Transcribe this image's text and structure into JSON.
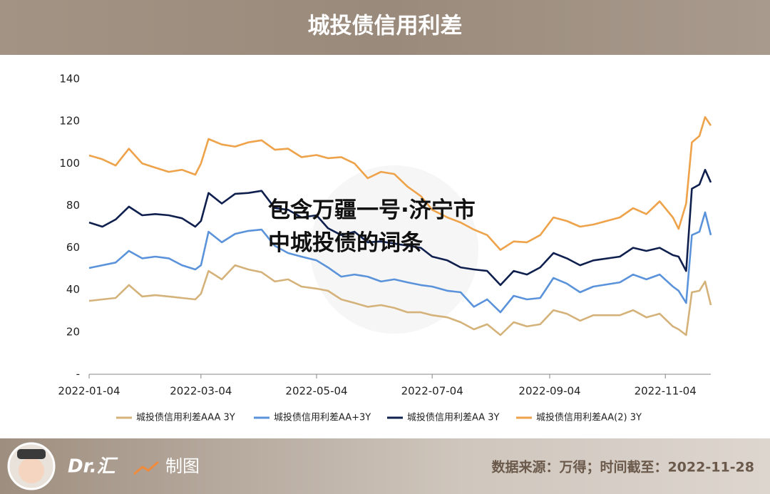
{
  "chart_data": {
    "type": "line",
    "title": "城投债信用利差",
    "x": [
      "2022-01-04",
      "2022-01-11",
      "2022-01-18",
      "2022-01-25",
      "2022-02-01",
      "2022-02-08",
      "2022-02-15",
      "2022-02-22",
      "2022-03-01",
      "2022-03-04",
      "2022-03-08",
      "2022-03-15",
      "2022-03-22",
      "2022-03-29",
      "2022-04-05",
      "2022-04-12",
      "2022-04-19",
      "2022-04-26",
      "2022-05-04",
      "2022-05-10",
      "2022-05-17",
      "2022-05-24",
      "2022-05-31",
      "2022-06-07",
      "2022-06-14",
      "2022-06-21",
      "2022-06-28",
      "2022-07-04",
      "2022-07-12",
      "2022-07-19",
      "2022-07-26",
      "2022-08-02",
      "2022-08-09",
      "2022-08-16",
      "2022-08-23",
      "2022-08-30",
      "2022-09-06",
      "2022-09-13",
      "2022-09-20",
      "2022-09-27",
      "2022-10-11",
      "2022-10-18",
      "2022-10-25",
      "2022-11-01",
      "2022-11-08",
      "2022-11-11",
      "2022-11-15",
      "2022-11-18",
      "2022-11-22",
      "2022-11-25",
      "2022-11-28"
    ],
    "series": [
      {
        "name": "城投债信用利差AAA 3Y",
        "color": "#d4b27a",
        "values": [
          34.8,
          35.5,
          36.2,
          42.3,
          36.9,
          37.5,
          36.9,
          36.2,
          35.5,
          38.2,
          49,
          45,
          51.7,
          49.7,
          48.4,
          44,
          45,
          41.6,
          40.6,
          39.6,
          35.5,
          33.8,
          32,
          32.8,
          31.5,
          29.4,
          29.4,
          28,
          27,
          24.7,
          21.3,
          23.7,
          18.6,
          24.7,
          22.7,
          23.7,
          30.4,
          28.7,
          25.4,
          28,
          28,
          30.4,
          27,
          28.7,
          22.7,
          21.3,
          18.6,
          38.9,
          39.6,
          44,
          32.8
        ]
      },
      {
        "name": "城投债信用利差AA+3Y",
        "color": "#5b93db",
        "values": [
          50.4,
          51.7,
          53,
          58.5,
          55,
          55.8,
          55,
          51.7,
          49.7,
          51.7,
          67.6,
          62.6,
          66.6,
          68,
          68.6,
          60.9,
          57.5,
          55.8,
          54,
          50.7,
          46.3,
          47.3,
          46.3,
          44,
          45,
          43.6,
          42.3,
          41.6,
          39.6,
          38.9,
          32,
          35.5,
          29.4,
          37.2,
          35.5,
          36.2,
          45.7,
          43,
          38.9,
          41.6,
          43.6,
          47.3,
          45,
          47.3,
          41.6,
          39.6,
          33.8,
          66,
          67.6,
          76.8,
          66
        ]
      },
      {
        "name": "城投债信用利差AA 3Y",
        "color": "#0f1f4e",
        "values": [
          72,
          70,
          73.4,
          79.5,
          75.4,
          76,
          75.4,
          74,
          70,
          72.7,
          86,
          81,
          85.6,
          86,
          87,
          78.8,
          78,
          74.4,
          75.4,
          69.3,
          66,
          67.6,
          62.6,
          63,
          62,
          61,
          60,
          55.8,
          54,
          50.7,
          49.7,
          49,
          42.3,
          49,
          47.3,
          50.7,
          57.5,
          55,
          51.7,
          54,
          55.8,
          60,
          58.5,
          60,
          56.5,
          55.8,
          49,
          88,
          90,
          97,
          91
        ]
      },
      {
        "name": "城投债信用利差AA(2) 3Y",
        "color": "#eea24a",
        "values": [
          103.8,
          102,
          99,
          107,
          100,
          98,
          96,
          97,
          94.7,
          100,
          111.6,
          109,
          108,
          110,
          111,
          106.5,
          107,
          103,
          104,
          102.5,
          103,
          100,
          93,
          96,
          95,
          89,
          84.5,
          78,
          74.4,
          72,
          68.6,
          66,
          59,
          63,
          62.6,
          66,
          74.4,
          72.7,
          70,
          71,
          74.4,
          78.8,
          76,
          82,
          74.4,
          69,
          81,
          110,
          113,
          122,
          118
        ]
      }
    ],
    "xlim": [
      "2022-01-04",
      "2022-11-28"
    ],
    "xticks": [
      "2022-01-04",
      "2022-03-04",
      "2022-05-04",
      "2022-07-04",
      "2022-09-04",
      "2022-11-04"
    ],
    "ylim": [
      0,
      140
    ],
    "yticks": [
      {
        "value": 0,
        "label": "-"
      },
      20,
      40,
      60,
      80,
      100,
      120,
      140
    ],
    "grid": false,
    "legend": "bottom"
  },
  "overlay_text": [
    "包含万疆一号·济宁市",
    "中城投债的词条"
  ],
  "footer": {
    "brand": "Dr.汇",
    "label": "制图",
    "source": "数据来源：万得；时间截至：2022-11-28"
  }
}
